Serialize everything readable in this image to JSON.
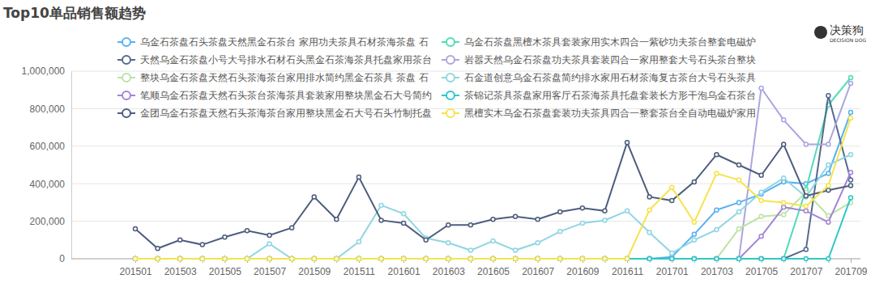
{
  "chart_data": {
    "type": "line",
    "title": "Top10单品销售额趋势",
    "annotations": [
      "决策狗",
      "DECISION DOG"
    ],
    "categories": [
      "201501",
      null,
      "201503",
      null,
      "201505",
      null,
      "201507",
      null,
      "201509",
      null,
      "201511",
      null,
      "201601",
      null,
      "201603",
      null,
      "201605",
      null,
      "201607",
      null,
      "201609",
      null,
      "201611",
      null,
      "201701",
      null,
      "201703",
      null,
      "201705",
      null,
      "201707",
      null,
      "201709"
    ],
    "ylim": [
      0,
      1000000
    ],
    "yticks": [
      0,
      {
        "value": 200000,
        "label": "200,000"
      },
      {
        "value": 400000,
        "label": "400,000"
      },
      {
        "value": 600000,
        "label": "600,000"
      },
      {
        "value": 800000,
        "label": "800,000"
      },
      {
        "value": 1000000,
        "label": "1,000,000"
      }
    ],
    "grid": true,
    "legend": "top",
    "marker": "circle",
    "series": [
      {
        "name": "乌金石茶盘石头茶盘天然黑金石茶台 家用功夫茶具石材茶海茶盘 石",
        "color": "#5ab1ef",
        "values": [
          0,
          0,
          0,
          0,
          0,
          0,
          0,
          0,
          0,
          0,
          0,
          0,
          0,
          0,
          0,
          0,
          0,
          0,
          0,
          0,
          0,
          0,
          0,
          0,
          10000,
          130000,
          260000,
          300000,
          345000,
          410000,
          400000,
          455000,
          780000
        ]
      },
      {
        "name": "乌金石茶盘黑檀木茶具套装家用实木四合一紫砂功夫茶台整套电磁炉",
        "color": "#4fdcb8",
        "values": [
          0,
          0,
          0,
          0,
          0,
          0,
          0,
          0,
          0,
          0,
          0,
          0,
          0,
          0,
          0,
          0,
          0,
          0,
          0,
          0,
          0,
          0,
          0,
          0,
          0,
          0,
          0,
          0,
          0,
          0,
          370000,
          820000,
          965000
        ]
      },
      {
        "name": "天然乌金石茶盘小号大号排水石材石头黑金石茶海茶具托盘家用茶台",
        "color": "#56698f",
        "values": [
          0,
          0,
          0,
          0,
          0,
          0,
          0,
          0,
          0,
          0,
          0,
          0,
          0,
          0,
          0,
          0,
          0,
          0,
          0,
          0,
          0,
          0,
          0,
          0,
          0,
          0,
          0,
          0,
          0,
          0,
          50000,
          870000,
          420000
        ]
      },
      {
        "name": "岩嚣天然乌金石茶盘功夫茶具套装四合一家用整套大号石头茶台整块",
        "color": "#aaa6e0",
        "values": [
          0,
          0,
          0,
          0,
          0,
          0,
          0,
          0,
          0,
          0,
          0,
          0,
          0,
          0,
          0,
          0,
          0,
          0,
          0,
          0,
          0,
          0,
          0,
          0,
          0,
          0,
          0,
          0,
          910000,
          740000,
          610000,
          610000,
          935000
        ]
      },
      {
        "name": "整块乌金石茶盘天然石头茶海茶台家用排水简约黑金石茶具 茶盘 石",
        "color": "#bde3a4",
        "values": [
          0,
          0,
          0,
          0,
          0,
          0,
          0,
          0,
          0,
          0,
          0,
          0,
          0,
          0,
          0,
          0,
          0,
          0,
          0,
          0,
          0,
          0,
          0,
          0,
          0,
          0,
          0,
          160000,
          225000,
          235000,
          355000,
          230000,
          300000
        ]
      },
      {
        "name": "石金道创意乌金石茶盘简约排水家用石材茶海复古茶台大号石头茶具",
        "color": "#8fd6e3",
        "values": [
          0,
          0,
          0,
          0,
          0,
          0,
          80000,
          0,
          0,
          0,
          90000,
          285000,
          240000,
          110000,
          85000,
          45000,
          95000,
          45000,
          85000,
          145000,
          190000,
          205000,
          255000,
          140000,
          30000,
          100000,
          155000,
          250000,
          355000,
          430000,
          330000,
          500000,
          555000
        ]
      },
      {
        "name": "笔顺乌金石茶盘天然石头茶台茶海茶具套装家用整块黑金石大号简约",
        "color": "#a285d6",
        "values": [
          0,
          0,
          0,
          0,
          0,
          0,
          0,
          0,
          0,
          0,
          0,
          0,
          0,
          0,
          0,
          0,
          0,
          0,
          0,
          0,
          0,
          0,
          0,
          0,
          0,
          0,
          0,
          0,
          120000,
          275000,
          255000,
          195000,
          460000
        ]
      },
      {
        "name": "茶锦记茶具茶盘家用客厅石茶海茶具托盘套装长方形干泡乌金石茶台",
        "color": "#2ec7c9",
        "values": [
          0,
          0,
          0,
          0,
          0,
          0,
          0,
          0,
          0,
          0,
          0,
          0,
          0,
          0,
          0,
          0,
          0,
          0,
          0,
          0,
          0,
          0,
          0,
          0,
          0,
          0,
          0,
          0,
          0,
          0,
          0,
          0,
          325000
        ]
      },
      {
        "name": "金团乌金石茶盘天然石头茶海茶台家用整块黑金石大号石头竹制托盘",
        "color": "#4e5d7e",
        "values": [
          160000,
          55000,
          100000,
          75000,
          115000,
          150000,
          125000,
          165000,
          330000,
          210000,
          435000,
          205000,
          190000,
          100000,
          180000,
          180000,
          210000,
          225000,
          210000,
          250000,
          270000,
          255000,
          620000,
          330000,
          310000,
          410000,
          555000,
          500000,
          445000,
          610000,
          335000,
          365000,
          390000
        ]
      },
      {
        "name": "黑檀实木乌金石茶盘套装功夫茶具四合一整套茶台全自动电磁炉家用",
        "color": "#f5e44c",
        "values": [
          0,
          0,
          0,
          0,
          0,
          0,
          0,
          0,
          0,
          0,
          0,
          0,
          0,
          0,
          0,
          0,
          0,
          0,
          0,
          0,
          0,
          0,
          0,
          260000,
          380000,
          195000,
          455000,
          420000,
          310000,
          300000,
          280000,
          390000,
          750000
        ]
      }
    ]
  }
}
